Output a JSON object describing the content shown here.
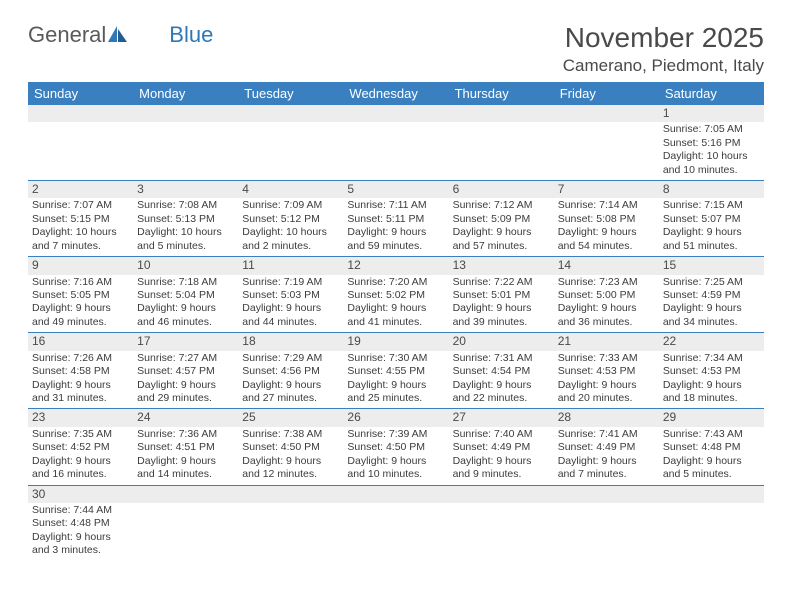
{
  "brand": {
    "part1": "General",
    "part2": "Blue"
  },
  "title": "November 2025",
  "location": "Camerano, Piedmont, Italy",
  "colors": {
    "header_bg": "#3a7fbf",
    "header_fg": "#ffffff",
    "daynum_bg": "#ededed",
    "rule": "#3a7fbf",
    "logo_gray": "#5a5a5a",
    "logo_blue": "#2e78b7"
  },
  "day_headers": [
    "Sunday",
    "Monday",
    "Tuesday",
    "Wednesday",
    "Thursday",
    "Friday",
    "Saturday"
  ],
  "weeks": [
    {
      "nums": [
        "",
        "",
        "",
        "",
        "",
        "",
        "1"
      ],
      "cells": [
        null,
        null,
        null,
        null,
        null,
        null,
        {
          "sunrise": "Sunrise: 7:05 AM",
          "sunset": "Sunset: 5:16 PM",
          "d1": "Daylight: 10 hours",
          "d2": "and 10 minutes."
        }
      ]
    },
    {
      "nums": [
        "2",
        "3",
        "4",
        "5",
        "6",
        "7",
        "8"
      ],
      "cells": [
        {
          "sunrise": "Sunrise: 7:07 AM",
          "sunset": "Sunset: 5:15 PM",
          "d1": "Daylight: 10 hours",
          "d2": "and 7 minutes."
        },
        {
          "sunrise": "Sunrise: 7:08 AM",
          "sunset": "Sunset: 5:13 PM",
          "d1": "Daylight: 10 hours",
          "d2": "and 5 minutes."
        },
        {
          "sunrise": "Sunrise: 7:09 AM",
          "sunset": "Sunset: 5:12 PM",
          "d1": "Daylight: 10 hours",
          "d2": "and 2 minutes."
        },
        {
          "sunrise": "Sunrise: 7:11 AM",
          "sunset": "Sunset: 5:11 PM",
          "d1": "Daylight: 9 hours",
          "d2": "and 59 minutes."
        },
        {
          "sunrise": "Sunrise: 7:12 AM",
          "sunset": "Sunset: 5:09 PM",
          "d1": "Daylight: 9 hours",
          "d2": "and 57 minutes."
        },
        {
          "sunrise": "Sunrise: 7:14 AM",
          "sunset": "Sunset: 5:08 PM",
          "d1": "Daylight: 9 hours",
          "d2": "and 54 minutes."
        },
        {
          "sunrise": "Sunrise: 7:15 AM",
          "sunset": "Sunset: 5:07 PM",
          "d1": "Daylight: 9 hours",
          "d2": "and 51 minutes."
        }
      ]
    },
    {
      "nums": [
        "9",
        "10",
        "11",
        "12",
        "13",
        "14",
        "15"
      ],
      "cells": [
        {
          "sunrise": "Sunrise: 7:16 AM",
          "sunset": "Sunset: 5:05 PM",
          "d1": "Daylight: 9 hours",
          "d2": "and 49 minutes."
        },
        {
          "sunrise": "Sunrise: 7:18 AM",
          "sunset": "Sunset: 5:04 PM",
          "d1": "Daylight: 9 hours",
          "d2": "and 46 minutes."
        },
        {
          "sunrise": "Sunrise: 7:19 AM",
          "sunset": "Sunset: 5:03 PM",
          "d1": "Daylight: 9 hours",
          "d2": "and 44 minutes."
        },
        {
          "sunrise": "Sunrise: 7:20 AM",
          "sunset": "Sunset: 5:02 PM",
          "d1": "Daylight: 9 hours",
          "d2": "and 41 minutes."
        },
        {
          "sunrise": "Sunrise: 7:22 AM",
          "sunset": "Sunset: 5:01 PM",
          "d1": "Daylight: 9 hours",
          "d2": "and 39 minutes."
        },
        {
          "sunrise": "Sunrise: 7:23 AM",
          "sunset": "Sunset: 5:00 PM",
          "d1": "Daylight: 9 hours",
          "d2": "and 36 minutes."
        },
        {
          "sunrise": "Sunrise: 7:25 AM",
          "sunset": "Sunset: 4:59 PM",
          "d1": "Daylight: 9 hours",
          "d2": "and 34 minutes."
        }
      ]
    },
    {
      "nums": [
        "16",
        "17",
        "18",
        "19",
        "20",
        "21",
        "22"
      ],
      "cells": [
        {
          "sunrise": "Sunrise: 7:26 AM",
          "sunset": "Sunset: 4:58 PM",
          "d1": "Daylight: 9 hours",
          "d2": "and 31 minutes."
        },
        {
          "sunrise": "Sunrise: 7:27 AM",
          "sunset": "Sunset: 4:57 PM",
          "d1": "Daylight: 9 hours",
          "d2": "and 29 minutes."
        },
        {
          "sunrise": "Sunrise: 7:29 AM",
          "sunset": "Sunset: 4:56 PM",
          "d1": "Daylight: 9 hours",
          "d2": "and 27 minutes."
        },
        {
          "sunrise": "Sunrise: 7:30 AM",
          "sunset": "Sunset: 4:55 PM",
          "d1": "Daylight: 9 hours",
          "d2": "and 25 minutes."
        },
        {
          "sunrise": "Sunrise: 7:31 AM",
          "sunset": "Sunset: 4:54 PM",
          "d1": "Daylight: 9 hours",
          "d2": "and 22 minutes."
        },
        {
          "sunrise": "Sunrise: 7:33 AM",
          "sunset": "Sunset: 4:53 PM",
          "d1": "Daylight: 9 hours",
          "d2": "and 20 minutes."
        },
        {
          "sunrise": "Sunrise: 7:34 AM",
          "sunset": "Sunset: 4:53 PM",
          "d1": "Daylight: 9 hours",
          "d2": "and 18 minutes."
        }
      ]
    },
    {
      "nums": [
        "23",
        "24",
        "25",
        "26",
        "27",
        "28",
        "29"
      ],
      "cells": [
        {
          "sunrise": "Sunrise: 7:35 AM",
          "sunset": "Sunset: 4:52 PM",
          "d1": "Daylight: 9 hours",
          "d2": "and 16 minutes."
        },
        {
          "sunrise": "Sunrise: 7:36 AM",
          "sunset": "Sunset: 4:51 PM",
          "d1": "Daylight: 9 hours",
          "d2": "and 14 minutes."
        },
        {
          "sunrise": "Sunrise: 7:38 AM",
          "sunset": "Sunset: 4:50 PM",
          "d1": "Daylight: 9 hours",
          "d2": "and 12 minutes."
        },
        {
          "sunrise": "Sunrise: 7:39 AM",
          "sunset": "Sunset: 4:50 PM",
          "d1": "Daylight: 9 hours",
          "d2": "and 10 minutes."
        },
        {
          "sunrise": "Sunrise: 7:40 AM",
          "sunset": "Sunset: 4:49 PM",
          "d1": "Daylight: 9 hours",
          "d2": "and 9 minutes."
        },
        {
          "sunrise": "Sunrise: 7:41 AM",
          "sunset": "Sunset: 4:49 PM",
          "d1": "Daylight: 9 hours",
          "d2": "and 7 minutes."
        },
        {
          "sunrise": "Sunrise: 7:43 AM",
          "sunset": "Sunset: 4:48 PM",
          "d1": "Daylight: 9 hours",
          "d2": "and 5 minutes."
        }
      ]
    },
    {
      "nums": [
        "30",
        "",
        "",
        "",
        "",
        "",
        ""
      ],
      "cells": [
        {
          "sunrise": "Sunrise: 7:44 AM",
          "sunset": "Sunset: 4:48 PM",
          "d1": "Daylight: 9 hours",
          "d2": "and 3 minutes."
        },
        null,
        null,
        null,
        null,
        null,
        null
      ],
      "last": true
    }
  ]
}
